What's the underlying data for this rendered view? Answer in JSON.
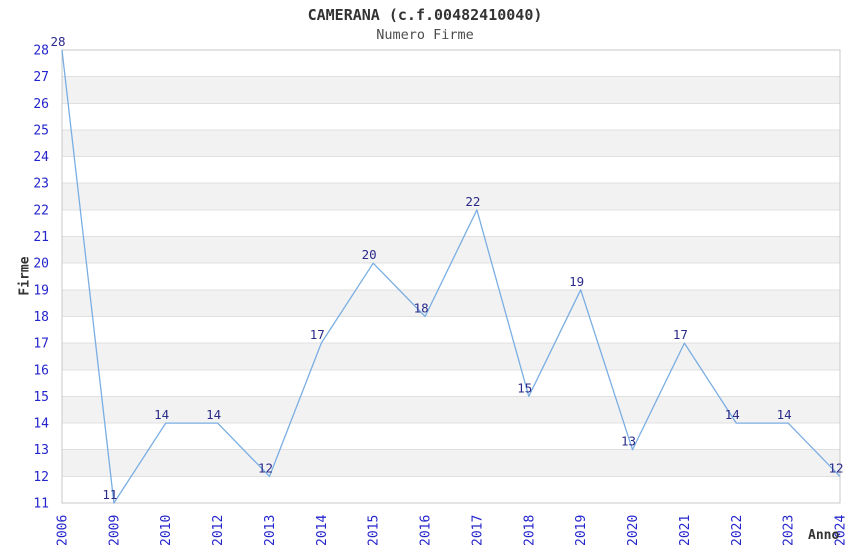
{
  "chart_data": {
    "type": "line",
    "title": "CAMERANA (c.f.00482410040)",
    "subtitle": "Numero Firme",
    "xlabel": "Anno",
    "ylabel": "Firme",
    "categories": [
      "2006",
      "2009",
      "2010",
      "2012",
      "2013",
      "2014",
      "2015",
      "2016",
      "2017",
      "2018",
      "2019",
      "2020",
      "2021",
      "2022",
      "2023",
      "2024"
    ],
    "values": [
      28,
      11,
      14,
      14,
      12,
      17,
      20,
      18,
      22,
      15,
      19,
      13,
      17,
      14,
      14,
      12
    ],
    "ylim": [
      11,
      28
    ],
    "y_tick_step": 1,
    "x_tick_rotation_deg": 90,
    "legend": "none",
    "grid": "horizontal gridlines at every integer, alternating shaded unit bands",
    "point_markers": "none",
    "data_labels_shown": true,
    "colors": {
      "line": "#7aaee3",
      "tick_label": "#2424cc",
      "data_label": "#2b2b8a",
      "band": "#f2f2f2",
      "gridline": "#e0e0e0",
      "plot_border": "#c9c9c9",
      "title": "#333333",
      "subtitle": "#4d4d4d",
      "axis_title": "#333333",
      "background": "#ffffff"
    }
  }
}
